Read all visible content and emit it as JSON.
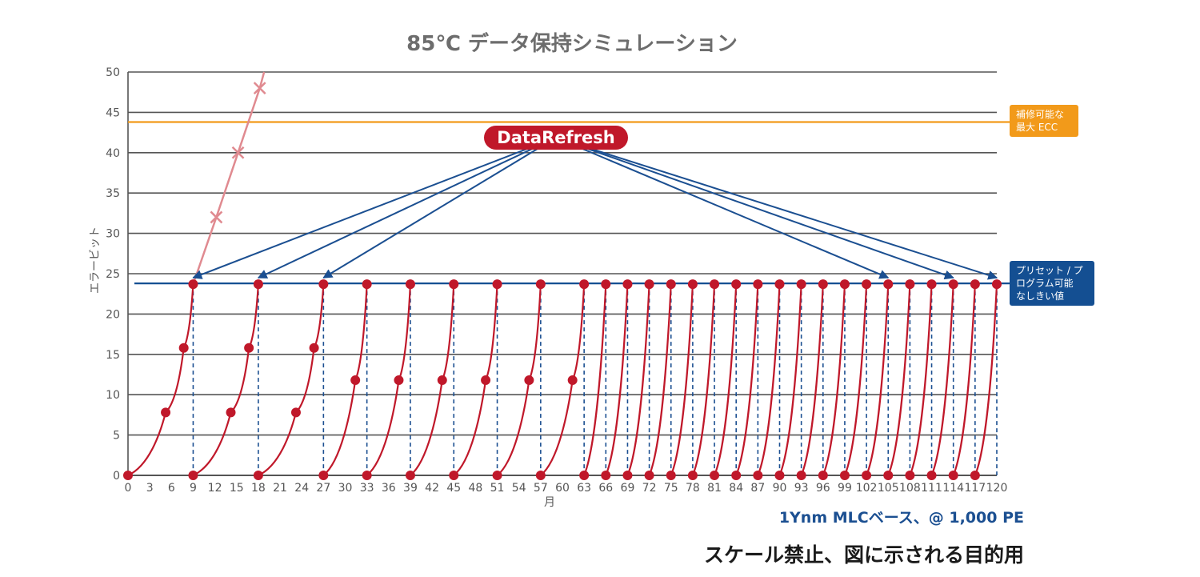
{
  "chart_data": {
    "type": "line",
    "title": "85℃ データ保持シミュレーション",
    "xlabel": "月",
    "ylabel": "エラービット",
    "xlim": [
      0,
      120
    ],
    "ylim": [
      0,
      50
    ],
    "x_ticks": [
      0,
      3,
      6,
      9,
      12,
      15,
      18,
      21,
      24,
      27,
      30,
      33,
      36,
      39,
      42,
      45,
      48,
      51,
      54,
      57,
      60,
      63,
      66,
      69,
      72,
      75,
      78,
      81,
      84,
      87,
      90,
      93,
      96,
      99,
      102,
      105,
      108,
      111,
      114,
      117,
      120
    ],
    "y_ticks": [
      0,
      5,
      10,
      15,
      20,
      25,
      30,
      35,
      40,
      45,
      50
    ],
    "grid": true,
    "subtitle": "1Ynm MLCベース、@ 1,000 PE",
    "disclaimer": "スケール禁止、図に示される目的用",
    "thresholds": [
      {
        "label": "補修可能な最大 ECC",
        "label_lines": [
          "補修可能な",
          "最大 ECC"
        ],
        "value": 43.8,
        "color": "#f29a1a"
      },
      {
        "label": "プリセット / プログラム可能なしきい値",
        "label_lines": [
          "プリセット / プ",
          "ログラム可能",
          "なしきい値"
        ],
        "value": 23.8,
        "color": "#144f92"
      }
    ],
    "refresh_label": "DataRefresh",
    "refresh_targets_x": [
      9,
      18,
      27,
      105,
      114,
      120
    ],
    "refresh_cycles": [
      {
        "start": 0,
        "end": 9,
        "points": [
          [
            0,
            0
          ],
          [
            5.2,
            7.8
          ],
          [
            7.7,
            15.8
          ],
          [
            9,
            23.7
          ]
        ]
      },
      {
        "start": 9,
        "end": 18,
        "points": [
          [
            9,
            0
          ],
          [
            14.2,
            7.8
          ],
          [
            16.7,
            15.8
          ],
          [
            18,
            23.7
          ]
        ]
      },
      {
        "start": 18,
        "end": 27,
        "points": [
          [
            18,
            0
          ],
          [
            23.2,
            7.8
          ],
          [
            25.7,
            15.8
          ],
          [
            27,
            23.7
          ]
        ]
      },
      {
        "start": 27,
        "end": 33,
        "points": [
          [
            27,
            0
          ],
          [
            31.4,
            11.8
          ],
          [
            33,
            23.7
          ]
        ]
      },
      {
        "start": 33,
        "end": 39,
        "points": [
          [
            33,
            0
          ],
          [
            37.4,
            11.8
          ],
          [
            39,
            23.7
          ]
        ]
      },
      {
        "start": 39,
        "end": 45,
        "points": [
          [
            39,
            0
          ],
          [
            43.4,
            11.8
          ],
          [
            45,
            23.7
          ]
        ]
      },
      {
        "start": 45,
        "end": 51,
        "points": [
          [
            45,
            0
          ],
          [
            49.4,
            11.8
          ],
          [
            51,
            23.7
          ]
        ]
      },
      {
        "start": 51,
        "end": 57,
        "points": [
          [
            51,
            0
          ],
          [
            55.4,
            11.8
          ],
          [
            57,
            23.7
          ]
        ]
      },
      {
        "start": 57,
        "end": 63,
        "points": [
          [
            57,
            0
          ],
          [
            61.4,
            11.8
          ],
          [
            63,
            23.7
          ]
        ]
      },
      {
        "start": 63,
        "end": 66,
        "points": [
          [
            63,
            0
          ],
          [
            66,
            23.7
          ]
        ]
      },
      {
        "start": 66,
        "end": 69,
        "points": [
          [
            66,
            0
          ],
          [
            69,
            23.7
          ]
        ]
      },
      {
        "start": 69,
        "end": 72,
        "points": [
          [
            69,
            0
          ],
          [
            72,
            23.7
          ]
        ]
      },
      {
        "start": 72,
        "end": 75,
        "points": [
          [
            72,
            0
          ],
          [
            75,
            23.7
          ]
        ]
      },
      {
        "start": 75,
        "end": 78,
        "points": [
          [
            75,
            0
          ],
          [
            78,
            23.7
          ]
        ]
      },
      {
        "start": 78,
        "end": 81,
        "points": [
          [
            78,
            0
          ],
          [
            81,
            23.7
          ]
        ]
      },
      {
        "start": 81,
        "end": 84,
        "points": [
          [
            81,
            0
          ],
          [
            84,
            23.7
          ]
        ]
      },
      {
        "start": 84,
        "end": 87,
        "points": [
          [
            84,
            0
          ],
          [
            87,
            23.7
          ]
        ]
      },
      {
        "start": 87,
        "end": 90,
        "points": [
          [
            87,
            0
          ],
          [
            90,
            23.7
          ]
        ]
      },
      {
        "start": 90,
        "end": 93,
        "points": [
          [
            90,
            0
          ],
          [
            93,
            23.7
          ]
        ]
      },
      {
        "start": 93,
        "end": 96,
        "points": [
          [
            93,
            0
          ],
          [
            96,
            23.7
          ]
        ]
      },
      {
        "start": 96,
        "end": 99,
        "points": [
          [
            96,
            0
          ],
          [
            99,
            23.7
          ]
        ]
      },
      {
        "start": 99,
        "end": 102,
        "points": [
          [
            99,
            0
          ],
          [
            102,
            23.7
          ]
        ]
      },
      {
        "start": 102,
        "end": 105,
        "points": [
          [
            102,
            0
          ],
          [
            105,
            23.7
          ]
        ]
      },
      {
        "start": 105,
        "end": 108,
        "points": [
          [
            105,
            0
          ],
          [
            108,
            23.7
          ]
        ]
      },
      {
        "start": 108,
        "end": 111,
        "points": [
          [
            108,
            0
          ],
          [
            111,
            23.7
          ]
        ]
      },
      {
        "start": 111,
        "end": 114,
        "points": [
          [
            111,
            0
          ],
          [
            114,
            23.7
          ]
        ]
      },
      {
        "start": 114,
        "end": 117,
        "points": [
          [
            114,
            0
          ],
          [
            117,
            23.7
          ]
        ]
      },
      {
        "start": 117,
        "end": 120,
        "points": [
          [
            117,
            0
          ],
          [
            120,
            23.7
          ]
        ]
      }
    ],
    "no_refresh_series": {
      "color": "#e08a90",
      "points": [
        [
          9,
          23.7
        ],
        [
          12.2,
          32
        ],
        [
          15.2,
          40
        ],
        [
          18.2,
          48
        ],
        [
          18.8,
          50
        ]
      ],
      "markers_x": [
        [
          12.2,
          32
        ],
        [
          15.2,
          40
        ],
        [
          18.2,
          48
        ]
      ]
    },
    "colors": {
      "cycle": "#c0182a",
      "drop": "#1b4f91",
      "grid": "#555555"
    }
  }
}
